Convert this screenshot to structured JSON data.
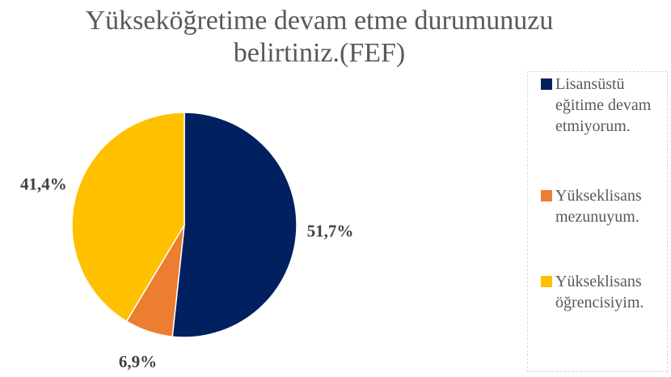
{
  "chart_data": {
    "type": "pie",
    "title": "Yükseköğretime devam etme durumunuzu belirtiniz.(FEF)",
    "categories": [
      "Lisansüstü eğitime devam etmiyorum.",
      "Yükseklisans mezunuyum.",
      "Yükseklisans öğrencisiyim."
    ],
    "values": [
      51.7,
      6.9,
      41.4
    ],
    "value_labels": [
      "51,7%",
      "6,9%",
      "41,4%"
    ],
    "colors": [
      "#002060",
      "#ED7D31",
      "#FFC000"
    ],
    "legend": "right"
  }
}
